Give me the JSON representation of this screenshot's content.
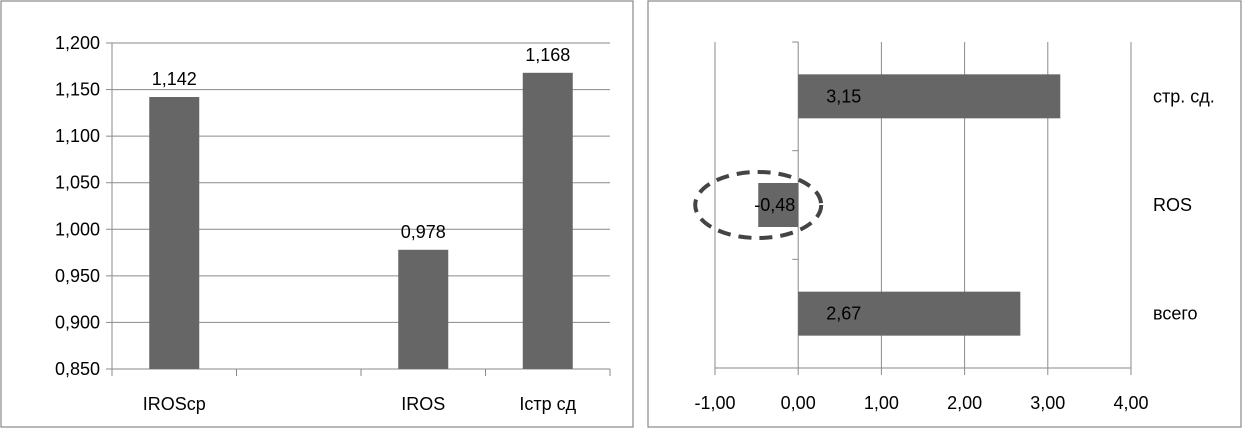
{
  "chart_data": [
    {
      "type": "bar",
      "orientation": "vertical",
      "categories": [
        "IROScp",
        "",
        "IROS",
        "Icтр сд"
      ],
      "values": [
        1.142,
        null,
        0.978,
        1.168
      ],
      "data_labels": [
        "1,142",
        "",
        "0,978",
        "1,168"
      ],
      "ylim": [
        0.85,
        1.2
      ],
      "y_ticks": [
        "0,850",
        "0,900",
        "0,950",
        "1,000",
        "1,050",
        "1,100",
        "1,150",
        "1,200"
      ],
      "bar_color": "#666666",
      "grid": true
    },
    {
      "type": "bar",
      "orientation": "horizontal",
      "categories": [
        "стр. сд.",
        "ROS",
        "всего"
      ],
      "values": [
        3.15,
        -0.48,
        2.67
      ],
      "data_labels": [
        "3,15",
        "-0,48",
        "2,67"
      ],
      "xlim": [
        -1,
        4
      ],
      "x_ticks": [
        "-1,00",
        "0,00",
        "1,00",
        "2,00",
        "3,00",
        "4,00"
      ],
      "bar_color": "#666666",
      "grid": true,
      "highlighted_category": "ROS",
      "highlight_style": "dashed ellipse"
    }
  ]
}
